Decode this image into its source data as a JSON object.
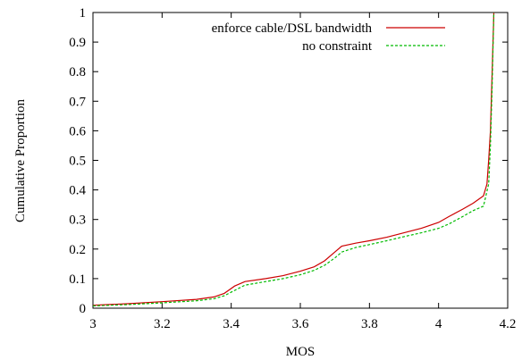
{
  "chart_data": {
    "type": "line",
    "xlabel": "MOS",
    "ylabel": "Cumulative Proportion",
    "xlim": [
      3,
      4.2
    ],
    "ylim": [
      0,
      1
    ],
    "xticks": [
      "3",
      "3.2",
      "3.4",
      "3.6",
      "3.8",
      "4",
      "4.2"
    ],
    "yticks": [
      "0",
      "0.1",
      "0.2",
      "0.3",
      "0.4",
      "0.5",
      "0.6",
      "0.7",
      "0.8",
      "0.9",
      "1"
    ],
    "grid": false,
    "legend_position": "top-right",
    "series": [
      {
        "name": "enforce cable/DSL bandwidth",
        "color": "#cc0000",
        "dash": "solid",
        "x": [
          3.0,
          3.1,
          3.2,
          3.3,
          3.35,
          3.38,
          3.41,
          3.44,
          3.5,
          3.55,
          3.6,
          3.64,
          3.67,
          3.7,
          3.72,
          3.76,
          3.8,
          3.85,
          3.9,
          3.95,
          4.0,
          4.03,
          4.07,
          4.1,
          4.13,
          4.14,
          4.145,
          4.15,
          4.155,
          4.16
        ],
        "y": [
          0.01,
          0.015,
          0.022,
          0.03,
          0.038,
          0.05,
          0.075,
          0.09,
          0.1,
          0.11,
          0.125,
          0.14,
          0.16,
          0.19,
          0.21,
          0.22,
          0.228,
          0.24,
          0.255,
          0.27,
          0.29,
          0.31,
          0.335,
          0.355,
          0.38,
          0.42,
          0.5,
          0.6,
          0.8,
          1.0
        ]
      },
      {
        "name": "no constraint",
        "color": "#00bb00",
        "dash": "dashed",
        "x": [
          3.0,
          3.1,
          3.2,
          3.3,
          3.35,
          3.38,
          3.41,
          3.44,
          3.5,
          3.55,
          3.6,
          3.64,
          3.67,
          3.7,
          3.72,
          3.76,
          3.8,
          3.85,
          3.9,
          3.95,
          4.0,
          4.03,
          4.07,
          4.1,
          4.13,
          4.145,
          4.15,
          4.155,
          4.16
        ],
        "y": [
          0.008,
          0.012,
          0.018,
          0.025,
          0.032,
          0.042,
          0.06,
          0.078,
          0.09,
          0.1,
          0.113,
          0.128,
          0.145,
          0.17,
          0.19,
          0.205,
          0.215,
          0.228,
          0.242,
          0.255,
          0.27,
          0.285,
          0.31,
          0.33,
          0.345,
          0.42,
          0.55,
          0.75,
          1.0
        ]
      }
    ]
  }
}
